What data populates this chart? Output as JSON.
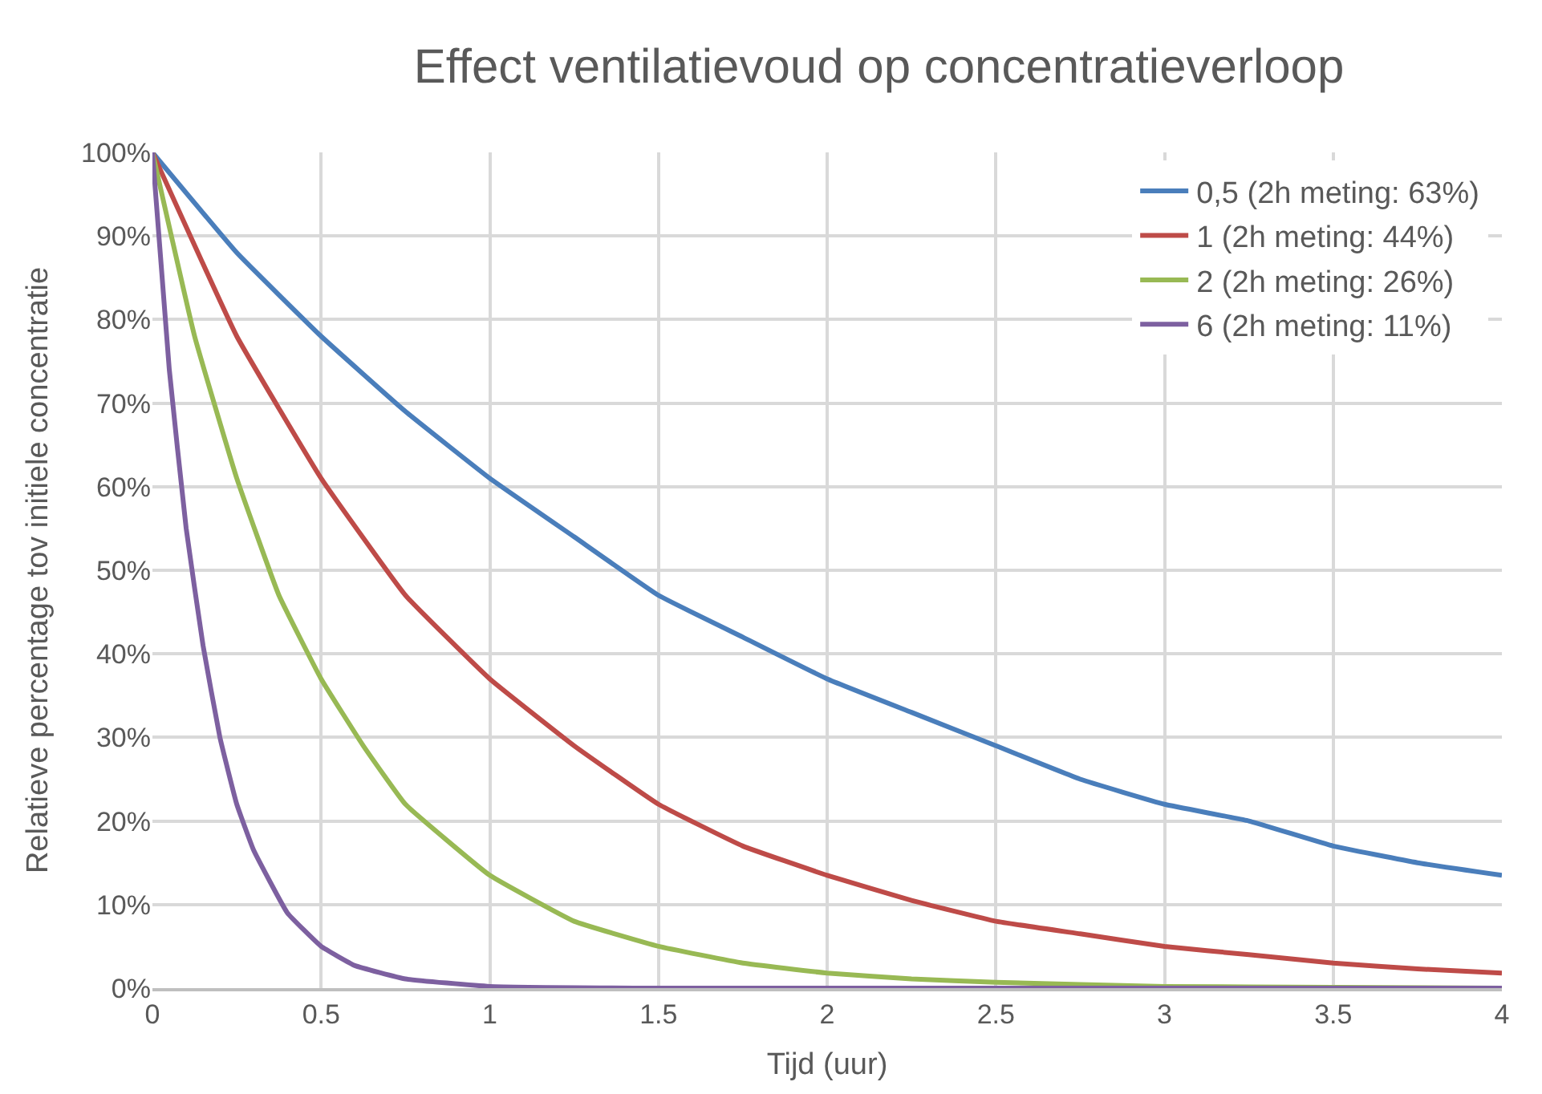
{
  "chart_data": {
    "type": "line",
    "title": "Effect ventilatievoud op concentratieverloop",
    "xlabel": "Tijd (uur)",
    "ylabel": "Relatieve percentage tov initiele concentratie",
    "series": [
      {
        "name": "0,5 (2h meting: 63%)",
        "color": "#4a7ebb",
        "x": [
          0,
          0.25,
          0.5,
          0.75,
          1,
          1.25,
          1.5,
          1.75,
          2,
          2.25,
          2.5,
          2.75,
          3,
          3.25,
          3.5,
          3.75,
          4
        ],
        "values": [
          100,
          88,
          78,
          69,
          61,
          54,
          47,
          42,
          37,
          33,
          29,
          25,
          22,
          20,
          17,
          15,
          13.5
        ]
      },
      {
        "name": "1 (2h meting: 44%)",
        "color": "#be4b48",
        "x": [
          0,
          0.25,
          0.5,
          0.75,
          1,
          1.25,
          1.5,
          1.75,
          2,
          2.25,
          2.5,
          2.75,
          3,
          3.25,
          3.5,
          3.75,
          4
        ],
        "values": [
          100,
          78,
          61,
          47,
          37,
          29,
          22,
          17,
          13.5,
          10.5,
          8,
          6.5,
          5,
          4,
          3,
          2.3,
          1.8
        ]
      },
      {
        "name": "2 (2h meting: 26%)",
        "color": "#98b954",
        "x": [
          0,
          0.125,
          0.25,
          0.375,
          0.5,
          0.625,
          0.75,
          1,
          1.25,
          1.5,
          1.75,
          2,
          2.25,
          2.5,
          3,
          3.5,
          4
        ],
        "values": [
          100,
          78,
          61,
          47,
          37,
          29,
          22,
          13.5,
          8,
          5,
          3,
          1.8,
          1.1,
          0.7,
          0.2,
          0.1,
          0
        ]
      },
      {
        "name": "6 (2h meting: 11%)",
        "color": "#7d60a0",
        "x": [
          0,
          0.05,
          0.1,
          0.15,
          0.2,
          0.25,
          0.3,
          0.4,
          0.5,
          0.6,
          0.75,
          1,
          1.5,
          2,
          2.5,
          3,
          3.5,
          4
        ],
        "values": [
          100,
          74,
          55,
          41,
          30,
          22,
          16.5,
          9,
          5,
          2.7,
          1.1,
          0.2,
          0,
          0,
          0,
          0,
          0,
          0
        ]
      }
    ],
    "xlim": [
      0,
      4
    ],
    "xticks": [
      0,
      0.5,
      1,
      1.5,
      2,
      2.5,
      3,
      3.5,
      4
    ],
    "ylim": [
      0,
      100
    ],
    "yticks": [
      {
        "value": 0,
        "label": "0%"
      },
      {
        "value": 10,
        "label": "10%"
      },
      {
        "value": 20,
        "label": "20%"
      },
      {
        "value": 30,
        "label": "30%"
      },
      {
        "value": 40,
        "label": "40%"
      },
      {
        "value": 50,
        "label": "50%"
      },
      {
        "value": 60,
        "label": "60%"
      },
      {
        "value": 70,
        "label": "70%"
      },
      {
        "value": 80,
        "label": "80%"
      },
      {
        "value": 90,
        "label": "90%"
      },
      {
        "value": 100,
        "label": "100%"
      }
    ],
    "grid": true,
    "legend": "top right",
    "marker": "none",
    "line_style": "solid"
  }
}
